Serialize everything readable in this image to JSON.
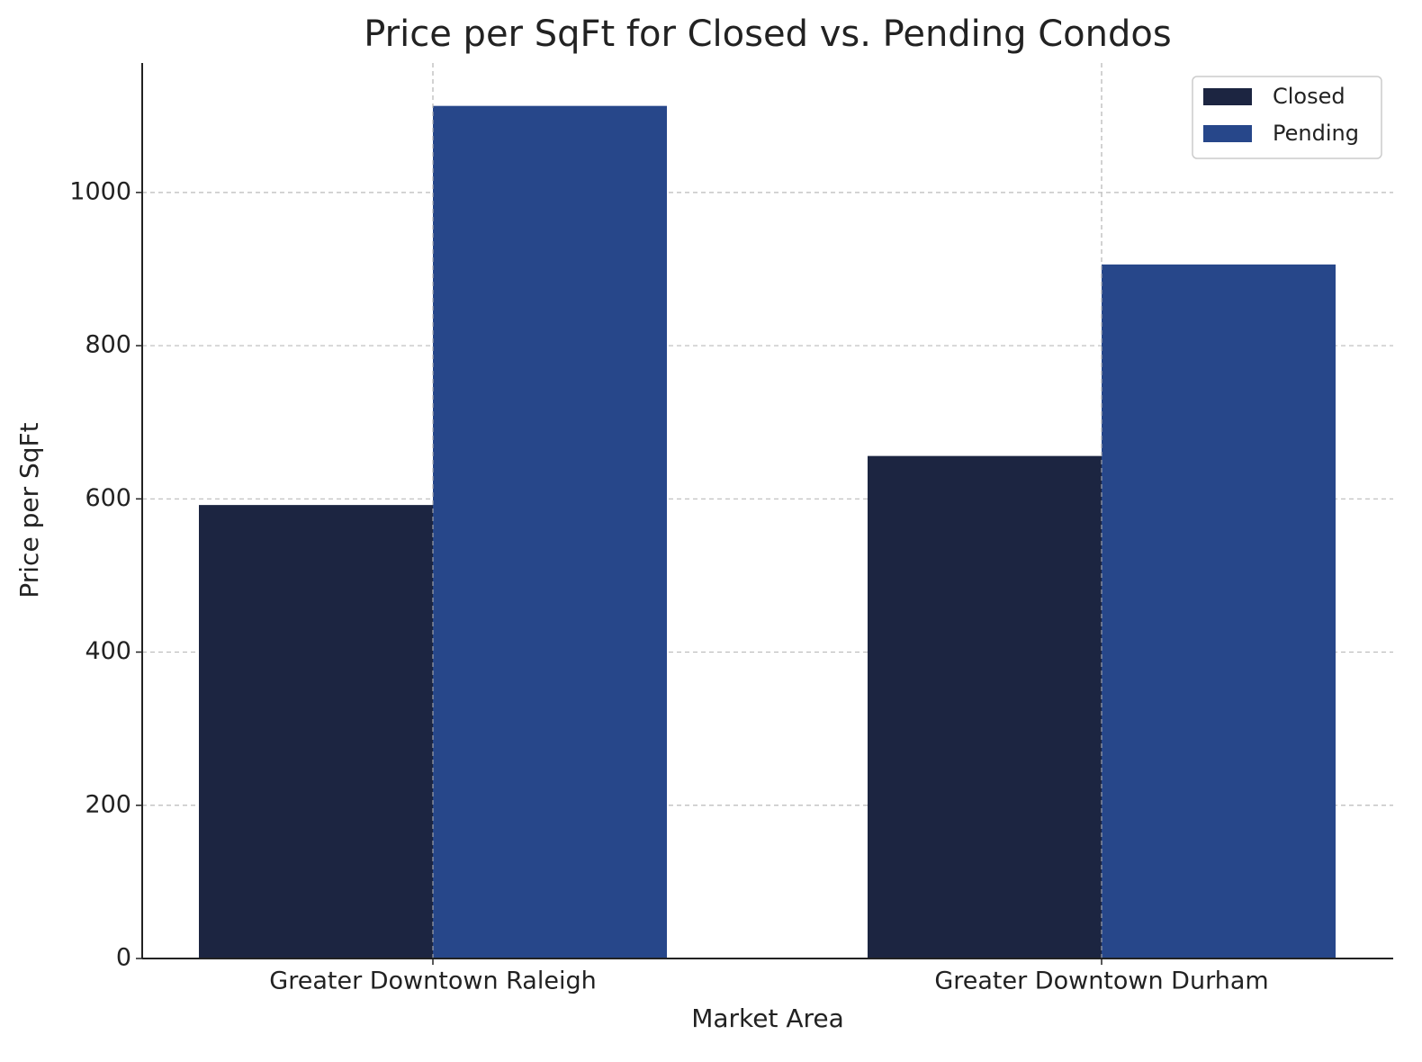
{
  "chart_data": {
    "type": "bar",
    "title": "Price per SqFt for Closed vs. Pending Condos",
    "xlabel": "Market Area",
    "ylabel": "Price per SqFt",
    "categories": [
      "Greater Downtown Raleigh",
      "Greater Downtown Durham"
    ],
    "series": [
      {
        "name": "Closed",
        "color": "#1c2541",
        "values": [
          592,
          656
        ]
      },
      {
        "name": "Pending",
        "color": "#27478a",
        "values": [
          1113,
          906
        ]
      }
    ],
    "ylim": [
      0,
      1169
    ],
    "yticks": [
      0,
      200,
      400,
      600,
      800,
      1000
    ],
    "grid": true,
    "legend": "upper right"
  }
}
